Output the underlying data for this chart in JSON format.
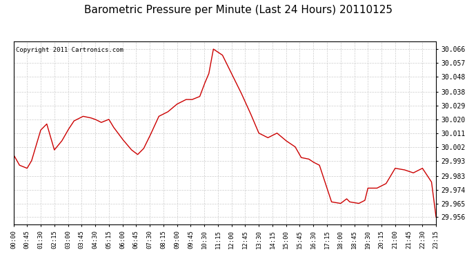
{
  "title": "Barometric Pressure per Minute (Last 24 Hours) 20110125",
  "copyright": "Copyright 2011 Cartronics.com",
  "line_color": "#cc0000",
  "bg_color": "#ffffff",
  "grid_color": "#cccccc",
  "yticks": [
    29.956,
    29.965,
    29.974,
    29.983,
    29.993,
    30.002,
    30.011,
    30.02,
    30.029,
    30.038,
    30.048,
    30.057,
    30.066
  ],
  "ylim": [
    29.951,
    30.071
  ],
  "xtick_labels": [
    "00:00",
    "00:45",
    "01:30",
    "02:15",
    "03:00",
    "03:45",
    "04:30",
    "05:15",
    "06:00",
    "06:45",
    "07:30",
    "08:15",
    "09:00",
    "09:45",
    "10:30",
    "11:15",
    "12:00",
    "12:45",
    "13:30",
    "14:15",
    "15:00",
    "15:45",
    "16:30",
    "17:15",
    "18:00",
    "18:45",
    "19:30",
    "20:15",
    "21:00",
    "21:45",
    "22:30",
    "23:15"
  ],
  "key_times": [
    0,
    20,
    45,
    60,
    90,
    110,
    135,
    160,
    180,
    200,
    230,
    255,
    270,
    290,
    315,
    330,
    360,
    390,
    410,
    430,
    450,
    480,
    510,
    540,
    570,
    590,
    615,
    630,
    645,
    660,
    690,
    720,
    750,
    780,
    810,
    840,
    870,
    900,
    930,
    950,
    975,
    990,
    1010,
    1050,
    1080,
    1100,
    1110,
    1140,
    1160,
    1170,
    1200,
    1230,
    1260,
    1290,
    1320,
    1350,
    1380,
    1395
  ],
  "key_values": [
    29.997,
    29.99,
    29.988,
    29.993,
    30.013,
    30.017,
    30.0,
    30.006,
    30.013,
    30.019,
    30.022,
    30.021,
    30.02,
    30.018,
    30.02,
    30.015,
    30.007,
    30.0,
    29.997,
    30.001,
    30.009,
    30.022,
    30.025,
    30.03,
    30.033,
    30.033,
    30.035,
    30.043,
    30.05,
    30.066,
    30.062,
    30.05,
    30.038,
    30.025,
    30.011,
    30.008,
    30.011,
    30.006,
    30.002,
    29.995,
    29.994,
    29.992,
    29.99,
    29.966,
    29.965,
    29.968,
    29.966,
    29.965,
    29.967,
    29.975,
    29.975,
    29.978,
    29.988,
    29.987,
    29.985,
    29.988,
    29.979,
    29.956
  ]
}
